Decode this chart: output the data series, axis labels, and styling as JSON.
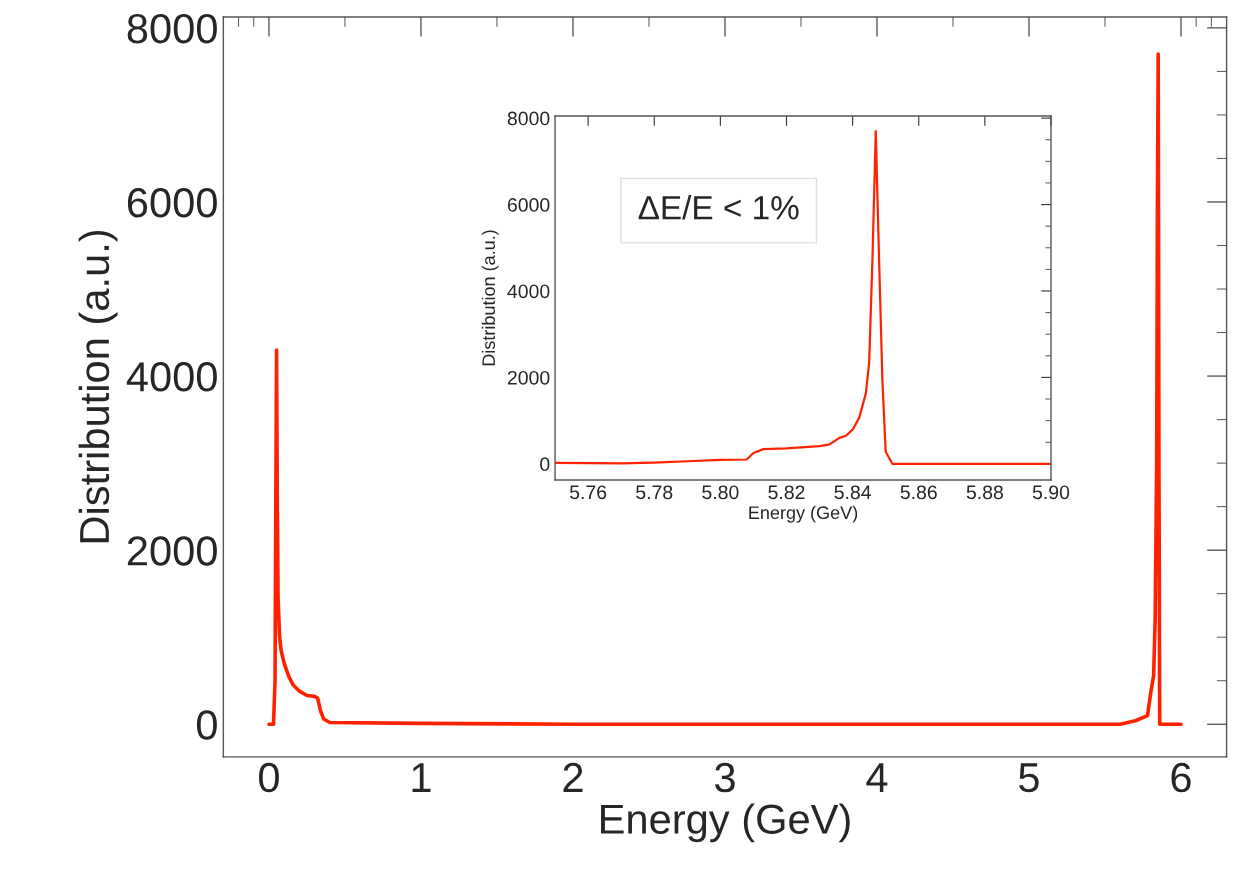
{
  "chart_data": [
    {
      "type": "line",
      "xlabel": "Energy (GeV)",
      "ylabel": "Distribution (a.u.)",
      "xlim": [
        -0.3,
        6.3
      ],
      "ylim": [
        -375,
        8125
      ],
      "xticks": [
        {
          "value": -0.2,
          "label": null
        },
        {
          "value": -0.1,
          "label": null
        },
        0,
        {
          "value": 0.5,
          "label": null
        },
        1,
        {
          "value": 1.5,
          "label": null
        },
        2,
        {
          "value": 2.5,
          "label": null
        },
        3,
        {
          "value": 3.5,
          "label": null
        },
        4,
        {
          "value": 4.5,
          "label": null
        },
        5,
        {
          "value": 5.5,
          "label": null
        },
        6,
        {
          "value": 6.1,
          "label": null
        },
        {
          "value": 6.2,
          "label": null
        }
      ],
      "yticks": [
        0,
        {
          "value": 500,
          "label": null
        },
        {
          "value": 1000,
          "label": null
        },
        {
          "value": 1500,
          "label": null
        },
        2000,
        {
          "value": 2500,
          "label": null
        },
        {
          "value": 3000,
          "label": null
        },
        {
          "value": 3500,
          "label": null
        },
        4000,
        {
          "value": 4500,
          "label": null
        },
        {
          "value": 5000,
          "label": null
        },
        {
          "value": 5500,
          "label": null
        },
        6000,
        {
          "value": 6500,
          "label": null
        },
        {
          "value": 7000,
          "label": null
        },
        {
          "value": 7500,
          "label": null
        },
        8000
      ],
      "grid": false,
      "legend": false,
      "marker": "none",
      "line_style": "solid",
      "series": [
        {
          "color": "#ff2200",
          "x": [
            0,
            0.03,
            0.04,
            0.045,
            0.05,
            0.055,
            0.06,
            0.07,
            0.08,
            0.1,
            0.13,
            0.16,
            0.2,
            0.25,
            0.3,
            0.32,
            0.34,
            0.36,
            0.4,
            1,
            2,
            3,
            4,
            5,
            5.6,
            5.7,
            5.78,
            5.8,
            5.82,
            5.83,
            5.84,
            5.845,
            5.85,
            5.855,
            5.86,
            6.0
          ],
          "values": [
            0,
            0,
            500,
            2500,
            4300,
            2500,
            1450,
            1000,
            850,
            700,
            550,
            450,
            380,
            330,
            320,
            300,
            150,
            60,
            20,
            10,
            0,
            0,
            0,
            0,
            0,
            40,
            100,
            350,
            560,
            1200,
            3000,
            6000,
            7700,
            3000,
            0,
            0
          ]
        }
      ]
    },
    {
      "type": "line",
      "xlabel": "Energy (GeV)",
      "ylabel": "Distribution (a.u.)",
      "xlim": [
        5.75,
        5.9
      ],
      "ylim": [
        -375,
        8050
      ],
      "xticks": [
        5.76,
        5.78,
        {
          "value": 5.8,
          "label": "5.80"
        },
        5.82,
        5.84,
        5.86,
        5.88,
        {
          "value": 5.9,
          "label": "5.90"
        }
      ],
      "yticks": [
        0,
        {
          "value": 500,
          "label": null
        },
        {
          "value": 1000,
          "label": null
        },
        {
          "value": 1500,
          "label": null
        },
        2000,
        {
          "value": 2500,
          "label": null
        },
        {
          "value": 3000,
          "label": null
        },
        {
          "value": 3500,
          "label": null
        },
        4000,
        {
          "value": 4500,
          "label": null
        },
        {
          "value": 5000,
          "label": null
        },
        {
          "value": 5500,
          "label": null
        },
        6000,
        {
          "value": 6500,
          "label": null
        },
        {
          "value": 7000,
          "label": null
        },
        {
          "value": 7500,
          "label": null
        },
        8000
      ],
      "grid": false,
      "legend": false,
      "marker": "none",
      "line_style": "solid",
      "annotations": [
        "ΔE/E < 1%"
      ],
      "series": [
        {
          "color": "#ff2200",
          "x": [
            5.75,
            5.77,
            5.78,
            5.79,
            5.8,
            5.808,
            5.81,
            5.813,
            5.82,
            5.83,
            5.833,
            5.836,
            5.838,
            5.84,
            5.842,
            5.844,
            5.845,
            5.846,
            5.847,
            5.848,
            5.849,
            5.85,
            5.852,
            5.9
          ],
          "values": [
            20,
            10,
            30,
            60,
            90,
            100,
            250,
            340,
            360,
            410,
            450,
            600,
            650,
            790,
            1070,
            1630,
            2330,
            4740,
            7700,
            4740,
            1950,
            280,
            0,
            0
          ]
        }
      ]
    }
  ]
}
